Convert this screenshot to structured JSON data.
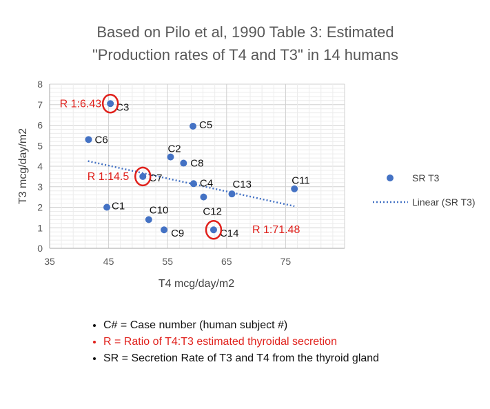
{
  "chart_data": {
    "type": "scatter",
    "title_lines": [
      "Based on Pilo et al, 1990 Table 3: Estimated",
      "\"Production rates of T4 and T3\" in 14 humans"
    ],
    "xlabel": "T4 mcg/day/m2",
    "ylabel": "T3 mcg/day/m2",
    "xlim": [
      35,
      85
    ],
    "ylim": [
      0,
      8
    ],
    "x_ticks": [
      "35",
      "45",
      "55",
      "65",
      "75"
    ],
    "y_ticks": [
      "0",
      "1",
      "2",
      "3",
      "4",
      "5",
      "6",
      "7",
      "8"
    ],
    "grid": true,
    "legend_position": "right",
    "series": [
      {
        "name": "SR T3",
        "color": "#4472c4",
        "points": [
          {
            "label": "C1",
            "x": 44.7,
            "y": 2.0
          },
          {
            "label": "C2",
            "x": 55.5,
            "y": 4.45
          },
          {
            "label": "C3",
            "x": 45.3,
            "y": 7.05
          },
          {
            "label": "C4",
            "x": 59.4,
            "y": 3.15
          },
          {
            "label": "C5",
            "x": 59.3,
            "y": 5.95
          },
          {
            "label": "C6",
            "x": 41.6,
            "y": 5.3
          },
          {
            "label": "C7",
            "x": 50.8,
            "y": 3.5
          },
          {
            "label": "C8",
            "x": 57.7,
            "y": 4.15
          },
          {
            "label": "C9",
            "x": 54.4,
            "y": 0.9
          },
          {
            "label": "C10",
            "x": 51.8,
            "y": 1.4
          },
          {
            "label": "C11",
            "x": 76.5,
            "y": 2.9
          },
          {
            "label": "C12",
            "x": 61.1,
            "y": 2.5
          },
          {
            "label": "C13",
            "x": 65.9,
            "y": 2.65
          },
          {
            "label": "C14",
            "x": 62.8,
            "y": 0.9
          }
        ]
      }
    ],
    "trendline": {
      "name": "Linear (SR T3)",
      "color": "#4472c4",
      "x": [
        41.5,
        76.5
      ],
      "y": [
        4.25,
        2.05
      ]
    },
    "ratio_annotations": [
      {
        "text": "R 1:6.43",
        "point": "C3",
        "color": "#e0201b"
      },
      {
        "text": "R 1:14.5",
        "point": "C7",
        "color": "#e0201b"
      },
      {
        "text": "R 1:71.48",
        "point": "C14",
        "color": "#e0201b"
      }
    ]
  },
  "notes": [
    {
      "text": "C# = Case number (human subject #)",
      "color": "#111111"
    },
    {
      "text": "R = Ratio of T4:T3 estimated thyroidal secretion",
      "color": "#e0201b"
    },
    {
      "text": "SR = Secretion Rate of T3 and T4 from the thyroid gland",
      "color": "#111111"
    }
  ]
}
